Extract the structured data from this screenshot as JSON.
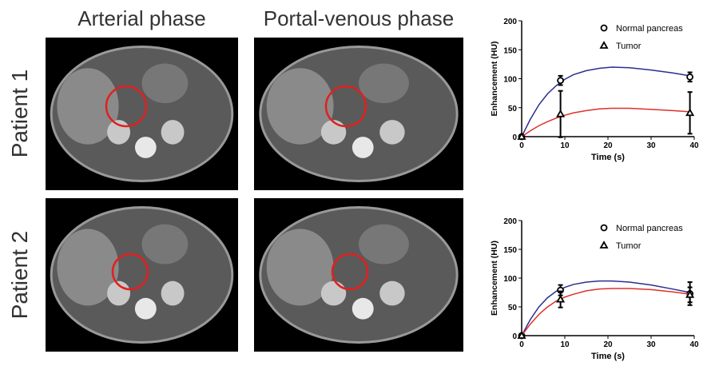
{
  "columns": [
    "Arterial phase",
    "Portal-venous phase"
  ],
  "rows": [
    "Patient 1",
    "Patient 2"
  ],
  "colors": {
    "normal_fit": "#2b2f8f",
    "tumor_fit": "#e0302a",
    "roi_circle": "#e02020"
  },
  "chart_data": [
    {
      "type": "line",
      "xlabel": "Time (s)",
      "ylabel": "Enhancement (HU)",
      "xlim": [
        0,
        40
      ],
      "ylim": [
        0,
        200
      ],
      "xticks": [
        0,
        10,
        20,
        30,
        40
      ],
      "yticks": [
        0,
        50,
        100,
        150,
        200
      ],
      "legend_placement": "top-right",
      "series": [
        {
          "name": "Normal pancreas",
          "marker": "circle",
          "x": [
            0,
            9,
            39
          ],
          "y": [
            0,
            97,
            103
          ],
          "err": [
            0,
            8,
            8
          ],
          "fit_x": [
            0,
            2,
            4,
            6,
            8,
            10,
            12,
            15,
            18,
            21,
            25,
            30,
            35,
            39
          ],
          "fit_y": [
            0,
            30,
            55,
            74,
            88,
            99,
            107,
            114,
            118,
            120,
            119,
            115,
            110,
            105
          ]
        },
        {
          "name": "Tumor",
          "marker": "triangle",
          "x": [
            0,
            9,
            39
          ],
          "y": [
            0,
            39,
            41
          ],
          "err": [
            0,
            40,
            36
          ],
          "fit_x": [
            0,
            2,
            4,
            6,
            8,
            10,
            12,
            15,
            18,
            21,
            25,
            30,
            35,
            39
          ],
          "fit_y": [
            0,
            10,
            19,
            26,
            32,
            37,
            41,
            45,
            48,
            49,
            49,
            47,
            45,
            43
          ]
        }
      ]
    },
    {
      "type": "line",
      "xlabel": "Time (s)",
      "ylabel": "Enhancement (HU)",
      "xlim": [
        0,
        40
      ],
      "ylim": [
        0,
        200
      ],
      "xticks": [
        0,
        10,
        20,
        30,
        40
      ],
      "yticks": [
        0,
        50,
        100,
        150,
        200
      ],
      "legend_placement": "top-right",
      "series": [
        {
          "name": "Normal pancreas",
          "marker": "circle",
          "x": [
            0,
            9,
            39
          ],
          "y": [
            0,
            79,
            73
          ],
          "err": [
            0,
            9,
            20
          ],
          "fit_x": [
            0,
            2,
            4,
            6,
            8,
            10,
            12,
            15,
            18,
            21,
            25,
            30,
            35,
            39
          ],
          "fit_y": [
            0,
            28,
            50,
            66,
            77,
            84,
            89,
            93,
            95,
            95,
            93,
            88,
            81,
            75
          ]
        },
        {
          "name": "Tumor",
          "marker": "triangle",
          "x": [
            0,
            9,
            39
          ],
          "y": [
            0,
            63,
            71
          ],
          "err": [
            0,
            14,
            13
          ],
          "fit_x": [
            0,
            2,
            4,
            6,
            8,
            10,
            12,
            15,
            18,
            21,
            25,
            30,
            35,
            39
          ],
          "fit_y": [
            0,
            20,
            37,
            50,
            60,
            67,
            72,
            78,
            81,
            82,
            82,
            80,
            76,
            72
          ]
        }
      ]
    }
  ]
}
